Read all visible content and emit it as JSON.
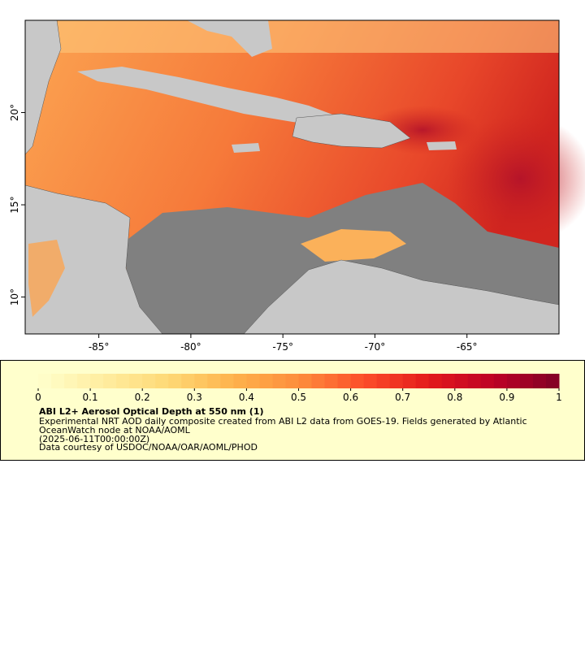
{
  "map": {
    "xlim": [
      -89,
      -60
    ],
    "ylim": [
      8,
      25
    ],
    "xticks": [
      {
        "value": -85,
        "label": "-85°"
      },
      {
        "value": -80,
        "label": "-80°"
      },
      {
        "value": -75,
        "label": "-75°"
      },
      {
        "value": -70,
        "label": "-70°"
      },
      {
        "value": -65,
        "label": "-65°"
      }
    ],
    "yticks": [
      {
        "value": 10,
        "label": "10°"
      },
      {
        "value": 15,
        "label": "15°"
      },
      {
        "value": 20,
        "label": "20°"
      }
    ]
  },
  "colorbar": {
    "lim": [
      0,
      1
    ],
    "ticks": [
      0,
      0.1,
      0.2,
      0.3,
      0.4,
      0.5,
      0.6,
      0.7,
      0.8,
      0.9,
      1
    ],
    "colors": [
      "#ffffcc",
      "#ffeda0",
      "#fed976",
      "#feb24c",
      "#fd8d3c",
      "#fc4e2a",
      "#e31a1c",
      "#bd0026",
      "#800026"
    ]
  },
  "legend": {
    "title": "ABI L2+ Aerosol Optical Depth at 550 nm (1)",
    "lines": [
      "Experimental NRT AOD daily composite created from ABI L2 data from GOES-19. Fields generated by Atlantic",
      "OceanWatch node at NOAA/AOML",
      "(2025-06-11T00:00:00Z)",
      "Data courtesy of USDOC/NOAA/OAR/AOML/PHOD"
    ]
  }
}
